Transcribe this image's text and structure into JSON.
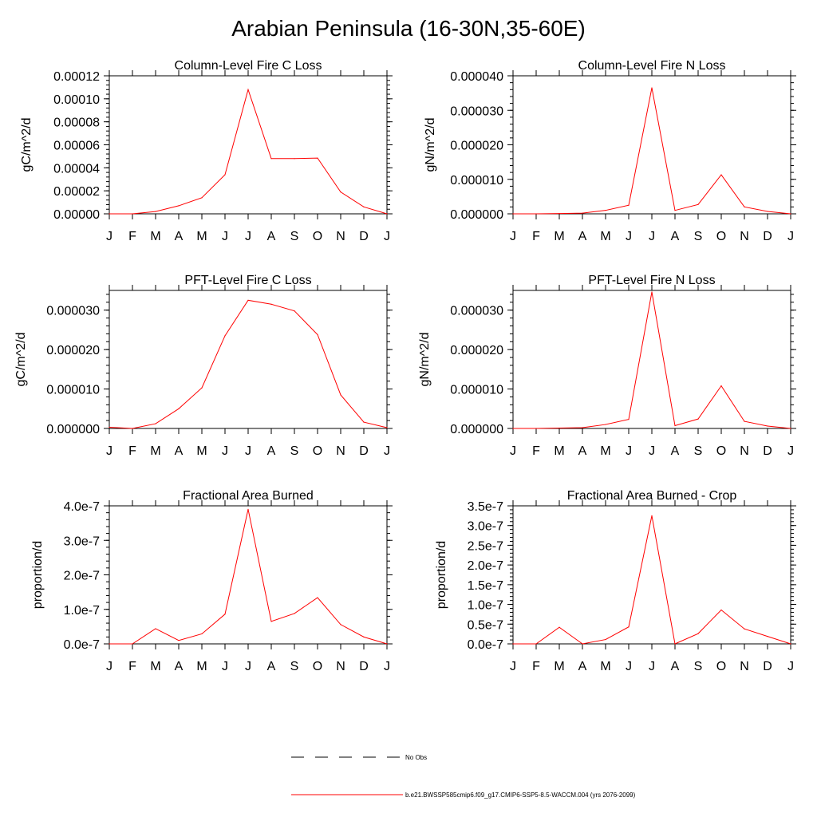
{
  "figure_title": "Arabian Peninsula (16-30N,35-60E)",
  "months": [
    "J",
    "F",
    "M",
    "A",
    "M",
    "J",
    "J",
    "A",
    "S",
    "O",
    "N",
    "D",
    "J"
  ],
  "series_color": "#ff0000",
  "legend": {
    "obs_label": "No Obs",
    "model_label": "b.e21.BWSSP585cmip6.f09_g17.CMIP6-SSP5-8.5-WACCM.004 (yrs 2076-2099)"
  },
  "chart_data": [
    {
      "type": "line",
      "title": "Column-Level Fire C Loss",
      "ylabel": "gC/m^2/d",
      "ylim": [
        0,
        0.00012
      ],
      "yticks": [
        0,
        2e-05,
        4e-05,
        6e-05,
        8e-05,
        0.0001,
        0.00012
      ],
      "ytick_labels": [
        "0.00000",
        "0.00002",
        "0.00004",
        "0.00006",
        "0.00008",
        "0.00010",
        "0.00012"
      ],
      "x": [
        "J",
        "F",
        "M",
        "A",
        "M",
        "J",
        "J",
        "A",
        "S",
        "O",
        "N",
        "D",
        "J"
      ],
      "values": [
        0,
        0,
        2e-06,
        7e-06,
        1.4e-05,
        3.4e-05,
        0.000108,
        4.8e-05,
        4.8e-05,
        4.85e-05,
        1.9e-05,
        6e-06,
        0
      ]
    },
    {
      "type": "line",
      "title": "Column-Level Fire N Loss",
      "ylabel": "gN/m^2/d",
      "ylim": [
        0,
        4e-05
      ],
      "yticks": [
        0,
        1e-05,
        2e-05,
        3e-05,
        4e-05
      ],
      "ytick_labels": [
        "0.000000",
        "0.000010",
        "0.000020",
        "0.000030",
        "0.000040"
      ],
      "x": [
        "J",
        "F",
        "M",
        "A",
        "M",
        "J",
        "J",
        "A",
        "S",
        "O",
        "N",
        "D",
        "J"
      ],
      "values": [
        0,
        0,
        1e-07,
        2e-07,
        1e-06,
        2.5e-06,
        3.65e-05,
        1e-06,
        2.7e-06,
        1.13e-05,
        2e-06,
        7e-07,
        0
      ]
    },
    {
      "type": "line",
      "title": "PFT-Level Fire C Loss",
      "ylabel": "gC/m^2/d",
      "ylim": [
        0,
        3.5e-05
      ],
      "yticks": [
        0,
        1e-05,
        2e-05,
        3e-05
      ],
      "ytick_labels": [
        "0.000000",
        "0.000010",
        "0.000020",
        "0.000030"
      ],
      "x": [
        "J",
        "F",
        "M",
        "A",
        "M",
        "J",
        "J",
        "A",
        "S",
        "O",
        "N",
        "D",
        "J"
      ],
      "values": [
        3e-07,
        0,
        1.2e-06,
        5e-06,
        1.03e-05,
        2.35e-05,
        3.25e-05,
        3.15e-05,
        2.98e-05,
        2.38e-05,
        8.5e-06,
        1.6e-06,
        2e-07
      ]
    },
    {
      "type": "line",
      "title": "PFT-Level Fire N Loss",
      "ylabel": "gN/m^2/d",
      "ylim": [
        0,
        3.5e-05
      ],
      "yticks": [
        0,
        1e-05,
        2e-05,
        3e-05
      ],
      "ytick_labels": [
        "0.000000",
        "0.000010",
        "0.000020",
        "0.000030"
      ],
      "x": [
        "J",
        "F",
        "M",
        "A",
        "M",
        "J",
        "J",
        "A",
        "S",
        "O",
        "N",
        "D",
        "J"
      ],
      "values": [
        0,
        0,
        1e-07,
        2e-07,
        1e-06,
        2.3e-06,
        3.46e-05,
        7e-07,
        2.4e-06,
        1.08e-05,
        1.8e-06,
        6e-07,
        0
      ]
    },
    {
      "type": "line",
      "title": "Fractional Area Burned",
      "ylabel": "proportion/d",
      "ylim": [
        0,
        4e-07
      ],
      "yticks": [
        0,
        1e-07,
        2e-07,
        3e-07,
        4e-07
      ],
      "ytick_labels": [
        "0.0e-7",
        "1.0e-7",
        "2.0e-7",
        "3.0e-7",
        "4.0e-7"
      ],
      "x": [
        "J",
        "F",
        "M",
        "A",
        "M",
        "J",
        "J",
        "A",
        "S",
        "O",
        "N",
        "D",
        "J"
      ],
      "values": [
        0,
        0,
        4.4e-08,
        1e-08,
        2.9e-08,
        8.6e-08,
        3.9e-07,
        6.5e-08,
        8.8e-08,
        1.34e-07,
        5.6e-08,
        2e-08,
        0
      ]
    },
    {
      "type": "line",
      "title": "Fractional Area Burned - Crop",
      "ylabel": "proportion/d",
      "ylim": [
        0,
        3.5e-07
      ],
      "yticks": [
        0,
        5e-08,
        1e-07,
        1.5e-07,
        2e-07,
        2.5e-07,
        3e-07,
        3.5e-07
      ],
      "ytick_labels": [
        "0.0e-7",
        "0.5e-7",
        "1.0e-7",
        "1.5e-7",
        "2.0e-7",
        "2.5e-7",
        "3.0e-7",
        "3.5e-7"
      ],
      "x": [
        "J",
        "F",
        "M",
        "A",
        "M",
        "J",
        "J",
        "A",
        "S",
        "O",
        "N",
        "D",
        "J"
      ],
      "values": [
        0,
        0,
        4.2e-08,
        0,
        1.1e-08,
        4.3e-08,
        3.25e-07,
        0,
        2.6e-08,
        8.6e-08,
        3.8e-08,
        1.9e-08,
        0
      ]
    }
  ]
}
